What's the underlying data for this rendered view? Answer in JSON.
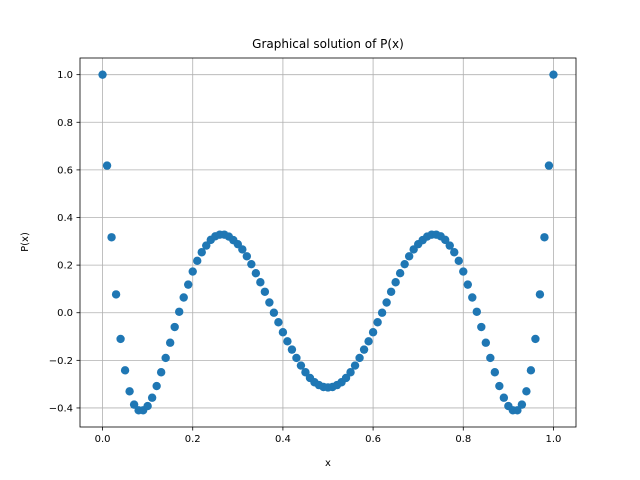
{
  "chart_data": {
    "type": "scatter",
    "title": "Graphical solution of P(x)",
    "xlabel": "x",
    "ylabel": "P(x)",
    "xlim": [
      -0.05,
      1.05
    ],
    "ylim": [
      -0.48,
      1.07
    ],
    "xticks": [
      0.0,
      0.2,
      0.4,
      0.6,
      0.8,
      1.0
    ],
    "xtick_labels": [
      "0.0",
      "0.2",
      "0.4",
      "0.6",
      "0.8",
      "1.0"
    ],
    "yticks": [
      -0.4,
      -0.2,
      0.0,
      0.2,
      0.4,
      0.6,
      0.8,
      1.0
    ],
    "ytick_labels": [
      "−0.4",
      "−0.2",
      "0.0",
      "0.2",
      "0.4",
      "0.6",
      "0.8",
      "1.0"
    ],
    "grid": true,
    "marker_color": "#1f77b4",
    "series": [
      {
        "points": [
          [
            0.0,
            1.0
          ],
          [
            0.01,
            0.618
          ],
          [
            0.02,
            0.317
          ],
          [
            0.03,
            0.077
          ],
          [
            0.04,
            -0.11
          ],
          [
            0.05,
            -0.242
          ],
          [
            0.06,
            -0.33
          ],
          [
            0.07,
            -0.386
          ],
          [
            0.08,
            -0.41
          ],
          [
            0.09,
            -0.41
          ],
          [
            0.1,
            -0.392
          ],
          [
            0.11,
            -0.357
          ],
          [
            0.12,
            -0.308
          ],
          [
            0.13,
            -0.25
          ],
          [
            0.14,
            -0.19
          ],
          [
            0.15,
            -0.126
          ],
          [
            0.16,
            -0.06
          ],
          [
            0.17,
            0.004
          ],
          [
            0.18,
            0.064
          ],
          [
            0.19,
            0.118
          ],
          [
            0.2,
            0.173
          ],
          [
            0.21,
            0.218
          ],
          [
            0.22,
            0.254
          ],
          [
            0.23,
            0.282
          ],
          [
            0.24,
            0.306
          ],
          [
            0.25,
            0.321
          ],
          [
            0.26,
            0.328
          ],
          [
            0.27,
            0.328
          ],
          [
            0.28,
            0.32
          ],
          [
            0.29,
            0.305
          ],
          [
            0.3,
            0.288
          ],
          [
            0.31,
            0.266
          ],
          [
            0.32,
            0.237
          ],
          [
            0.33,
            0.204
          ],
          [
            0.34,
            0.166
          ],
          [
            0.35,
            0.128
          ],
          [
            0.36,
            0.088
          ],
          [
            0.37,
            0.043
          ],
          [
            0.38,
            0.0
          ],
          [
            0.39,
            -0.04
          ],
          [
            0.4,
            -0.082
          ],
          [
            0.41,
            -0.12
          ],
          [
            0.42,
            -0.155
          ],
          [
            0.43,
            -0.19
          ],
          [
            0.44,
            -0.222
          ],
          [
            0.45,
            -0.25
          ],
          [
            0.46,
            -0.274
          ],
          [
            0.47,
            -0.292
          ],
          [
            0.48,
            -0.304
          ],
          [
            0.49,
            -0.312
          ],
          [
            0.5,
            -0.314
          ],
          [
            0.51,
            -0.312
          ],
          [
            0.52,
            -0.304
          ],
          [
            0.53,
            -0.292
          ],
          [
            0.54,
            -0.274
          ],
          [
            0.55,
            -0.25
          ],
          [
            0.56,
            -0.222
          ],
          [
            0.57,
            -0.19
          ],
          [
            0.58,
            -0.155
          ],
          [
            0.59,
            -0.12
          ],
          [
            0.6,
            -0.082
          ],
          [
            0.61,
            -0.04
          ],
          [
            0.62,
            0.0
          ],
          [
            0.63,
            0.043
          ],
          [
            0.64,
            0.088
          ],
          [
            0.65,
            0.128
          ],
          [
            0.66,
            0.166
          ],
          [
            0.67,
            0.204
          ],
          [
            0.68,
            0.237
          ],
          [
            0.69,
            0.266
          ],
          [
            0.7,
            0.288
          ],
          [
            0.71,
            0.305
          ],
          [
            0.72,
            0.32
          ],
          [
            0.73,
            0.328
          ],
          [
            0.74,
            0.328
          ],
          [
            0.75,
            0.321
          ],
          [
            0.76,
            0.306
          ],
          [
            0.77,
            0.282
          ],
          [
            0.78,
            0.254
          ],
          [
            0.79,
            0.218
          ],
          [
            0.8,
            0.173
          ],
          [
            0.81,
            0.118
          ],
          [
            0.82,
            0.064
          ],
          [
            0.83,
            0.004
          ],
          [
            0.84,
            -0.06
          ],
          [
            0.85,
            -0.126
          ],
          [
            0.86,
            -0.19
          ],
          [
            0.87,
            -0.25
          ],
          [
            0.88,
            -0.308
          ],
          [
            0.89,
            -0.357
          ],
          [
            0.9,
            -0.392
          ],
          [
            0.91,
            -0.41
          ],
          [
            0.92,
            -0.41
          ],
          [
            0.93,
            -0.386
          ],
          [
            0.94,
            -0.33
          ],
          [
            0.95,
            -0.242
          ],
          [
            0.96,
            -0.11
          ],
          [
            0.97,
            0.077
          ],
          [
            0.98,
            0.317
          ],
          [
            0.99,
            0.618
          ],
          [
            1.0,
            1.0
          ]
        ]
      }
    ]
  }
}
